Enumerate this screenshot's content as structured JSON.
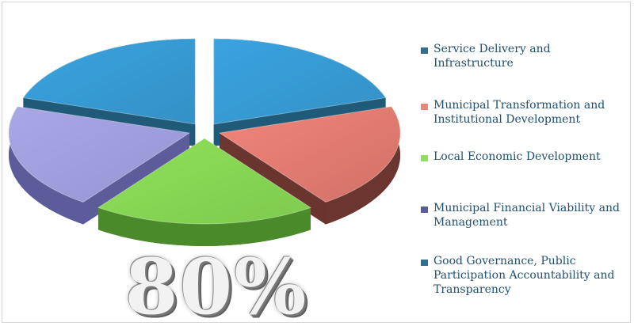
{
  "chart_data": {
    "type": "pie",
    "style": "3d-exploded",
    "center_label": "80%",
    "slices": [
      {
        "name": "Service Delivery and Infrastructure",
        "value": 20,
        "color": "#3aa3e0",
        "side_color": "#1f5a78"
      },
      {
        "name": "Municipal Transformation and Institutional Development",
        "value": 20,
        "color": "#f2857a",
        "side_color": "#6b3530"
      },
      {
        "name": "Local Economic Development",
        "value": 20,
        "color": "#8fe05a",
        "side_color": "#4a8a2a"
      },
      {
        "name": "Municipal Financial Viability and Management",
        "value": 20,
        "color": "#a9a8e6",
        "side_color": "#5c5c9a"
      },
      {
        "name": "Good Governance, Public Participation Accountability and Transparency",
        "value": 20,
        "color": "#3aa3e0",
        "side_color": "#1f5a78"
      }
    ],
    "legend_position": "right"
  },
  "legend": {
    "items": [
      {
        "label": "Service Delivery and Infrastructure",
        "color": "#2f6f94"
      },
      {
        "label": "Municipal Transformation and Institutional Development",
        "color": "#f2857a"
      },
      {
        "label": "Local Economic Development",
        "color": "#8fe05a"
      },
      {
        "label": "Municipal Financial Viability and Management",
        "color": "#5c5c9a"
      },
      {
        "label": "Good Governance, Public Participation Accountability and Transparency",
        "color": "#2f6f94"
      }
    ]
  }
}
